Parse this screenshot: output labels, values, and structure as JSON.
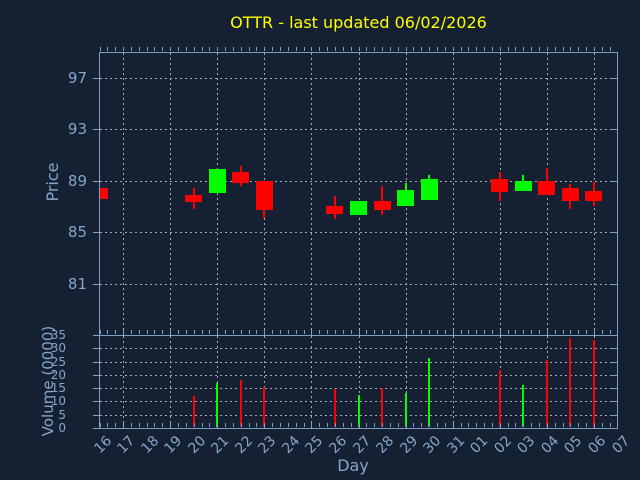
{
  "title": "OTTR - last updated 06/02/2026",
  "colors": {
    "background": "#152132",
    "axis": "#7da0c7",
    "labels": "#84a6cc",
    "grid": "#a3adba",
    "title": "#ffff00",
    "up": "#00ff00",
    "down": "#ff0000"
  },
  "chart_data": [
    {
      "type": "candlestick",
      "panel": "price",
      "title": "OTTR - last updated 06/02/2026",
      "xlabel": "Day",
      "ylabel": "Price",
      "x_categories": [
        "16",
        "17",
        "18",
        "19",
        "20",
        "21",
        "22",
        "23",
        "24",
        "25",
        "26",
        "27",
        "28",
        "29",
        "30",
        "31",
        "01",
        "02",
        "03",
        "04",
        "05",
        "06",
        "07"
      ],
      "ylim": [
        77,
        99
      ],
      "yticks": [
        81,
        85,
        89,
        93,
        97
      ],
      "grid": true,
      "legend": "none",
      "candles": [
        {
          "day": "16",
          "open": 88.4,
          "high": 88.4,
          "low": 87.6,
          "close": 87.6
        },
        {
          "day": "20",
          "open": 87.9,
          "high": 88.4,
          "low": 86.8,
          "close": 87.3
        },
        {
          "day": "21",
          "open": 88.0,
          "high": 89.9,
          "low": 88.0,
          "close": 89.9
        },
        {
          "day": "22",
          "open": 89.7,
          "high": 90.1,
          "low": 88.6,
          "close": 88.8
        },
        {
          "day": "23",
          "open": 89.0,
          "high": 89.0,
          "low": 86.1,
          "close": 86.7
        },
        {
          "day": "26",
          "open": 87.0,
          "high": 87.8,
          "low": 86.0,
          "close": 86.4
        },
        {
          "day": "27",
          "open": 86.3,
          "high": 87.4,
          "low": 86.3,
          "close": 87.4
        },
        {
          "day": "28",
          "open": 87.4,
          "high": 88.6,
          "low": 86.3,
          "close": 86.7
        },
        {
          "day": "29",
          "open": 87.0,
          "high": 88.8,
          "low": 87.0,
          "close": 88.3
        },
        {
          "day": "30",
          "open": 87.5,
          "high": 89.4,
          "low": 87.5,
          "close": 89.1
        },
        {
          "day": "02",
          "open": 89.1,
          "high": 89.7,
          "low": 87.4,
          "close": 88.1
        },
        {
          "day": "03",
          "open": 88.2,
          "high": 89.4,
          "low": 88.2,
          "close": 89.0
        },
        {
          "day": "04",
          "open": 89.0,
          "high": 90.0,
          "low": 87.9,
          "close": 87.9
        },
        {
          "day": "05",
          "open": 88.4,
          "high": 88.7,
          "low": 86.8,
          "close": 87.4
        },
        {
          "day": "06",
          "open": 88.2,
          "high": 88.9,
          "low": 87.0,
          "close": 87.4
        }
      ]
    },
    {
      "type": "bar",
      "panel": "volume",
      "ylabel": "Volume (0000)",
      "ylim": [
        0,
        35
      ],
      "yticks": [
        0,
        5,
        10,
        15,
        20,
        25,
        30,
        35
      ],
      "grid": true,
      "bars": [
        {
          "day": "20",
          "value": 12,
          "direction": "down"
        },
        {
          "day": "21",
          "value": 17,
          "direction": "up"
        },
        {
          "day": "22",
          "value": 18,
          "direction": "down"
        },
        {
          "day": "23",
          "value": 15.5,
          "direction": "down"
        },
        {
          "day": "26",
          "value": 14.5,
          "direction": "down"
        },
        {
          "day": "27",
          "value": 12.5,
          "direction": "up"
        },
        {
          "day": "28",
          "value": 15,
          "direction": "down"
        },
        {
          "day": "29",
          "value": 13,
          "direction": "up"
        },
        {
          "day": "30",
          "value": 26.5,
          "direction": "up"
        },
        {
          "day": "02",
          "value": 22,
          "direction": "down"
        },
        {
          "day": "03",
          "value": 16,
          "direction": "up"
        },
        {
          "day": "04",
          "value": 25.5,
          "direction": "down"
        },
        {
          "day": "05",
          "value": 34,
          "direction": "down"
        },
        {
          "day": "06",
          "value": 33,
          "direction": "down"
        }
      ]
    }
  ]
}
